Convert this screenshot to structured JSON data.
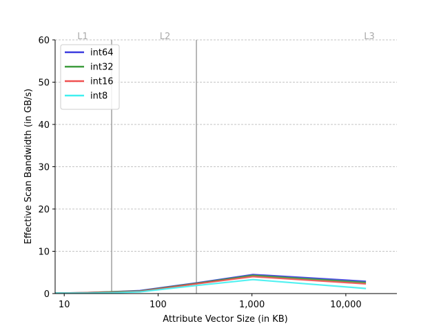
{
  "chart_data": {
    "type": "line",
    "xlabel": "Attribute Vector Size (in KB)",
    "ylabel": "Effective Scan Bandwidth (in GB/s)",
    "xscale": "log",
    "xlim": [
      8,
      35000
    ],
    "ylim": [
      0,
      60
    ],
    "grid": "horizontal dashed",
    "legend_position": "top-left",
    "xticks": [
      {
        "value": 10,
        "label": "10"
      },
      {
        "value": 100,
        "label": "100"
      },
      {
        "value": 1000,
        "label": "1,000"
      },
      {
        "value": 10000,
        "label": "10,000"
      }
    ],
    "yticks": [
      0,
      10,
      20,
      30,
      40,
      50,
      60
    ],
    "cache_levels": [
      {
        "label": "L1",
        "boundary_kb": 32
      },
      {
        "label": "L2",
        "boundary_kb": 256
      },
      {
        "label": "L3",
        "boundary_kb": null
      }
    ],
    "series": [
      {
        "name": "int64",
        "color": "#3a3adf",
        "x": [
          8,
          16,
          32,
          64,
          256,
          1024,
          16384
        ],
        "y": [
          0.1,
          0.2,
          0.4,
          0.7,
          2.5,
          4.5,
          2.9
        ]
      },
      {
        "name": "int32",
        "color": "#3a9a3a",
        "x": [
          8,
          16,
          32,
          64,
          256,
          1024,
          16384
        ],
        "y": [
          0.1,
          0.2,
          0.4,
          0.6,
          2.4,
          4.3,
          2.6
        ]
      },
      {
        "name": "int16",
        "color": "#f05050",
        "x": [
          8,
          16,
          32,
          64,
          256,
          1024,
          16384
        ],
        "y": [
          0.1,
          0.2,
          0.3,
          0.5,
          2.3,
          4.0,
          2.3
        ]
      },
      {
        "name": "int8",
        "color": "#40f0f0",
        "x": [
          8,
          16,
          32,
          64,
          256,
          1024,
          16384
        ],
        "y": [
          0.1,
          0.1,
          0.2,
          0.4,
          1.9,
          3.3,
          1.2
        ]
      }
    ]
  }
}
